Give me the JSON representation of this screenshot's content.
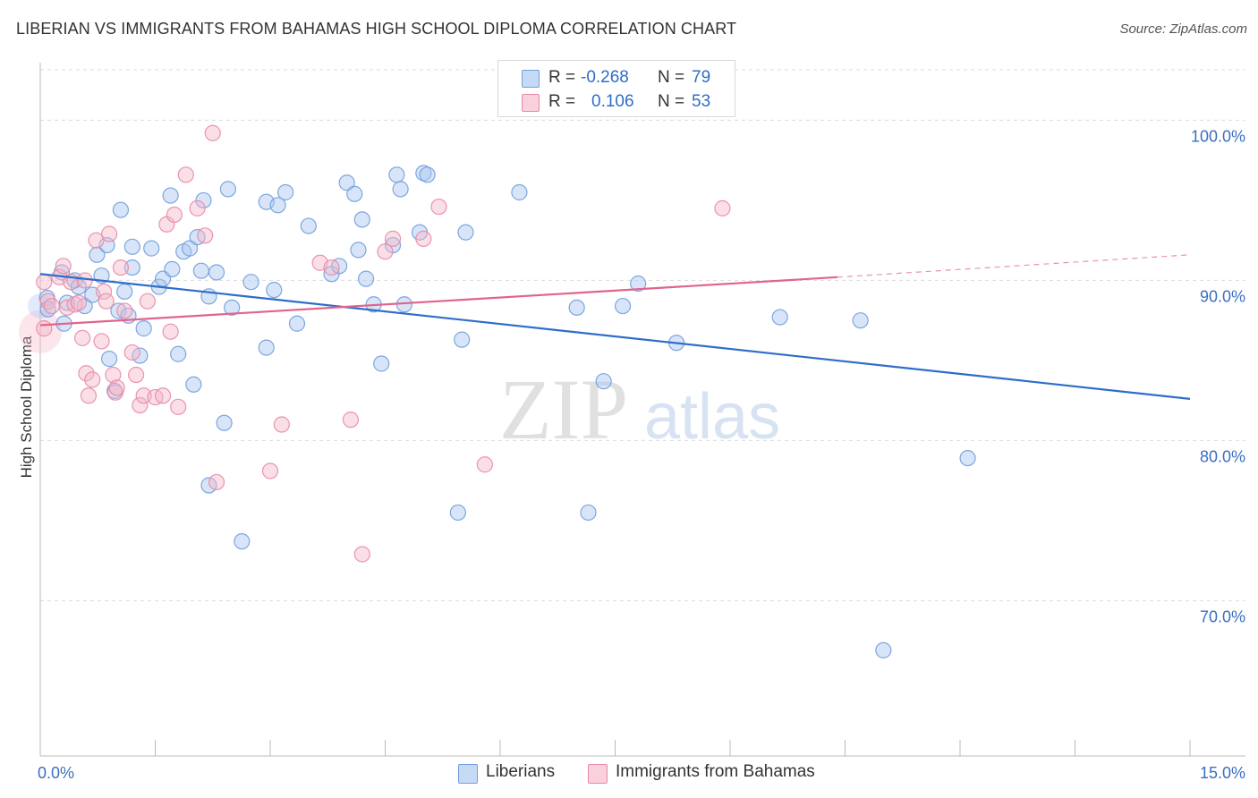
{
  "header": {
    "title": "LIBERIAN VS IMMIGRANTS FROM BAHAMAS HIGH SCHOOL DIPLOMA CORRELATION CHART",
    "source": "Source: ZipAtlas.com"
  },
  "watermark": {
    "zip": "ZIP",
    "atlas": "atlas"
  },
  "legend": {
    "rows": [
      {
        "r_label": "R =",
        "r_value": "-0.268",
        "n_label": "N =",
        "n_value": "79",
        "color": "#a9c6ef"
      },
      {
        "r_label": "R =",
        "r_value": "0.106",
        "n_label": "N =",
        "n_value": "53",
        "color": "#f5b7c9"
      }
    ]
  },
  "colors": {
    "blue_fill": "#a9c6ef",
    "blue_stroke": "#6f9fdc",
    "blue_line": "#2f6dc9",
    "pink_fill": "#f5b7c9",
    "pink_stroke": "#e88aa6",
    "pink_line": "#e0648e",
    "tick_label": "#3b6fbf",
    "grid": "#dcdcdc"
  },
  "chart_data": {
    "type": "scatter",
    "title": "LIBERIAN VS IMMIGRANTS FROM BAHAMAS HIGH SCHOOL DIPLOMA CORRELATION CHART",
    "xlabel": "",
    "ylabel": "High School Diploma",
    "xlim": [
      0,
      15
    ],
    "ylim": [
      60.3,
      103.6
    ],
    "x_tick_labels": [
      "0.0%",
      "15.0%"
    ],
    "y_ticks": [
      70,
      80,
      90,
      100
    ],
    "y_tick_labels": [
      "70.0%",
      "80.0%",
      "90.0%",
      "100.0%"
    ],
    "grid": true,
    "legend_position": "top-center",
    "series": [
      {
        "name": "Liberians",
        "color": "#a9c6ef",
        "trend": {
          "x": [
            0.0,
            15.0
          ],
          "y": [
            90.4,
            82.6
          ]
        },
        "points": [
          [
            0.09,
            88.9
          ],
          [
            0.1,
            88.2
          ],
          [
            0.28,
            90.5
          ],
          [
            0.31,
            87.3
          ],
          [
            0.35,
            88.6
          ],
          [
            0.45,
            90.0
          ],
          [
            0.5,
            89.6
          ],
          [
            0.58,
            88.4
          ],
          [
            0.68,
            89.1
          ],
          [
            0.74,
            91.6
          ],
          [
            0.8,
            90.3
          ],
          [
            0.87,
            92.2
          ],
          [
            0.9,
            85.1
          ],
          [
            0.97,
            83.1
          ],
          [
            1.02,
            88.1
          ],
          [
            1.05,
            94.4
          ],
          [
            1.1,
            89.3
          ],
          [
            1.15,
            87.8
          ],
          [
            1.2,
            90.8
          ],
          [
            1.2,
            92.1
          ],
          [
            1.3,
            85.3
          ],
          [
            1.35,
            87.0
          ],
          [
            1.45,
            92.0
          ],
          [
            1.55,
            89.6
          ],
          [
            1.6,
            90.1
          ],
          [
            1.7,
            95.3
          ],
          [
            1.72,
            90.7
          ],
          [
            1.8,
            85.4
          ],
          [
            1.87,
            91.8
          ],
          [
            1.95,
            92.0
          ],
          [
            2.0,
            83.5
          ],
          [
            2.05,
            92.7
          ],
          [
            2.1,
            90.6
          ],
          [
            2.13,
            95.0
          ],
          [
            2.2,
            77.2
          ],
          [
            2.3,
            90.5
          ],
          [
            2.4,
            81.1
          ],
          [
            2.45,
            95.7
          ],
          [
            2.5,
            88.3
          ],
          [
            2.63,
            73.7
          ],
          [
            2.75,
            89.9
          ],
          [
            2.95,
            94.9
          ],
          [
            2.95,
            85.8
          ],
          [
            3.05,
            89.4
          ],
          [
            3.1,
            94.7
          ],
          [
            3.2,
            95.5
          ],
          [
            3.35,
            87.3
          ],
          [
            3.5,
            93.4
          ],
          [
            3.8,
            90.4
          ],
          [
            3.9,
            90.9
          ],
          [
            4.0,
            96.1
          ],
          [
            4.1,
            95.4
          ],
          [
            4.15,
            91.9
          ],
          [
            4.2,
            93.8
          ],
          [
            4.25,
            90.1
          ],
          [
            4.35,
            88.5
          ],
          [
            4.45,
            84.8
          ],
          [
            4.6,
            92.2
          ],
          [
            4.65,
            96.6
          ],
          [
            4.7,
            95.7
          ],
          [
            4.75,
            88.5
          ],
          [
            4.95,
            93.0
          ],
          [
            5.0,
            96.7
          ],
          [
            5.05,
            96.6
          ],
          [
            5.45,
            75.5
          ],
          [
            5.5,
            86.3
          ],
          [
            5.55,
            93.0
          ],
          [
            6.25,
            95.5
          ],
          [
            7.0,
            88.3
          ],
          [
            7.15,
            75.5
          ],
          [
            7.35,
            83.7
          ],
          [
            7.6,
            88.4
          ],
          [
            7.8,
            89.8
          ],
          [
            8.3,
            86.1
          ],
          [
            9.65,
            87.7
          ],
          [
            10.7,
            87.5
          ],
          [
            11.0,
            66.9
          ],
          [
            12.1,
            78.9
          ],
          [
            2.2,
            89.0
          ]
        ]
      },
      {
        "name": "Immigrants from Bahamas",
        "color": "#f5b7c9",
        "trend": {
          "x": [
            0.0,
            10.4
          ],
          "y": [
            87.2,
            90.2
          ]
        },
        "trend_dashed": {
          "x": [
            10.4,
            15.0
          ],
          "y": [
            90.2,
            91.6
          ]
        },
        "points": [
          [
            0.05,
            87.0
          ],
          [
            0.05,
            89.9
          ],
          [
            0.1,
            88.7
          ],
          [
            0.15,
            88.4
          ],
          [
            0.25,
            90.2
          ],
          [
            0.3,
            90.9
          ],
          [
            0.35,
            88.3
          ],
          [
            0.4,
            89.9
          ],
          [
            0.45,
            88.5
          ],
          [
            0.5,
            88.6
          ],
          [
            0.55,
            86.4
          ],
          [
            0.58,
            90.0
          ],
          [
            0.6,
            84.2
          ],
          [
            0.63,
            82.8
          ],
          [
            0.68,
            83.8
          ],
          [
            0.73,
            92.5
          ],
          [
            0.8,
            86.2
          ],
          [
            0.83,
            89.3
          ],
          [
            0.86,
            88.7
          ],
          [
            0.9,
            92.9
          ],
          [
            0.95,
            84.1
          ],
          [
            0.98,
            83.0
          ],
          [
            1.0,
            83.3
          ],
          [
            1.05,
            90.8
          ],
          [
            1.1,
            88.1
          ],
          [
            1.2,
            85.5
          ],
          [
            1.25,
            84.1
          ],
          [
            1.3,
            82.2
          ],
          [
            1.35,
            82.8
          ],
          [
            1.4,
            88.7
          ],
          [
            1.5,
            82.7
          ],
          [
            1.6,
            82.8
          ],
          [
            1.65,
            93.5
          ],
          [
            1.7,
            86.8
          ],
          [
            1.75,
            94.1
          ],
          [
            1.8,
            82.1
          ],
          [
            1.9,
            96.6
          ],
          [
            2.05,
            94.5
          ],
          [
            2.15,
            92.8
          ],
          [
            2.25,
            99.2
          ],
          [
            2.3,
            77.4
          ],
          [
            3.0,
            78.1
          ],
          [
            3.15,
            81.0
          ],
          [
            3.65,
            91.1
          ],
          [
            3.8,
            90.8
          ],
          [
            4.05,
            81.3
          ],
          [
            4.2,
            72.9
          ],
          [
            4.5,
            91.8
          ],
          [
            4.6,
            92.6
          ],
          [
            5.0,
            92.6
          ],
          [
            5.2,
            94.6
          ],
          [
            5.8,
            78.5
          ],
          [
            8.9,
            94.5
          ]
        ]
      }
    ]
  },
  "bottom_legend": {
    "items": [
      "Liberians",
      "Immigrants from Bahamas"
    ]
  }
}
